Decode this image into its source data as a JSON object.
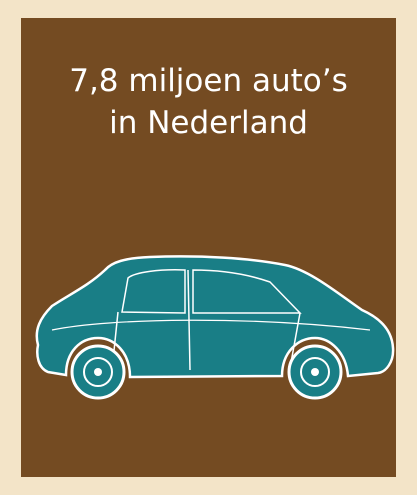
{
  "title_line1": "7,8 miljoen auto’s",
  "title_line2": "in Nederland"
}
